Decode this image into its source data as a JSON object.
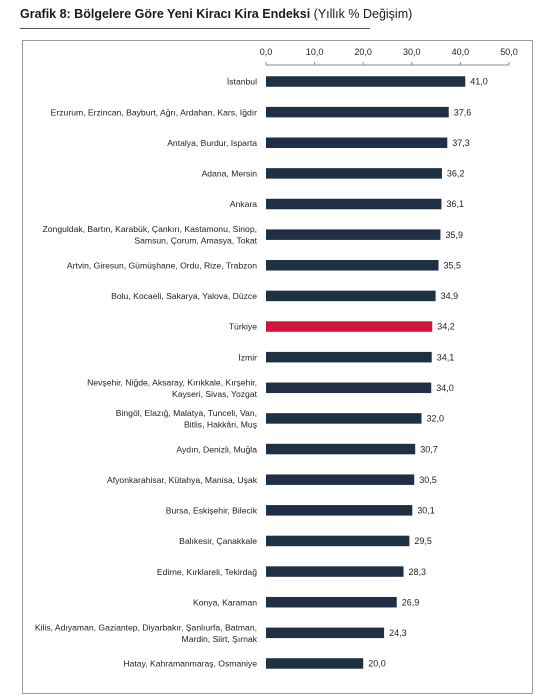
{
  "chart_data": {
    "type": "bar",
    "orientation": "horizontal",
    "title": "Grafik 8: Bölgelere Göre Yeni Kiracı Kira Endeksi",
    "subtitle": "(Yıllık % Değişim)",
    "xlim": [
      0,
      50
    ],
    "ticks": [
      "0,0",
      "10,0",
      "20,0",
      "30,0",
      "40,0",
      "50,0"
    ],
    "tick_values": [
      0,
      10,
      20,
      30,
      40,
      50
    ],
    "colors": {
      "default": "#1f3044",
      "highlight": "#d0163d"
    },
    "highlight_category": "Türkiye",
    "categories": [
      [
        "İstanbul"
      ],
      [
        "Erzurum, Erzincan, Bayburt, Ağrı, Ardahan, Kars, Iğdır"
      ],
      [
        "Antalya, Burdur, Isparta"
      ],
      [
        "Adana, Mersin"
      ],
      [
        "Ankara"
      ],
      [
        "Zonguldak, Bartın, Karabük, Çankırı, Kastamonu, Sinop,",
        "Samsun, Çorum, Amasya, Tokat"
      ],
      [
        "Artvin, Giresun, Gümüşhane, Ordu, Rize, Trabzon"
      ],
      [
        "Bolu, Kocaeli, Sakarya, Yalova, Düzce"
      ],
      [
        "Türkiye"
      ],
      [
        "İzmir"
      ],
      [
        "Nevşehir, Niğde, Aksaray, Kırıkkale, Kırşehir,",
        "Kayseri, Sivas, Yozgat"
      ],
      [
        "Bingöl, Elazığ, Malatya, Tunceli, Van,",
        "Bitlis, Hakkâri, Muş"
      ],
      [
        "Aydın, Denizli, Muğla"
      ],
      [
        "Afyonkarahisar, Kütahya, Manisa, Uşak"
      ],
      [
        "Bursa, Eskişehir, Bilecik"
      ],
      [
        "Balıkesir, Çanakkale"
      ],
      [
        "Edirne, Kırklareli, Tekirdağ"
      ],
      [
        "Konya, Karaman"
      ],
      [
        "Kilis, Adıyaman, Gaziantep, Diyarbakır, Şanlıurfa, Batman,",
        "Mardin, Siirt, Şırnak"
      ],
      [
        "Hatay, Kahramanmaraş, Osmaniye"
      ]
    ],
    "values": [
      41.0,
      37.6,
      37.3,
      36.2,
      36.1,
      35.9,
      35.5,
      34.9,
      34.2,
      34.1,
      34.0,
      32.0,
      30.7,
      30.5,
      30.1,
      29.5,
      28.3,
      26.9,
      24.3,
      20.0
    ],
    "value_labels": [
      "41,0",
      "37,6",
      "37,3",
      "36,2",
      "36,1",
      "35,9",
      "35,5",
      "34,9",
      "34,2",
      "34,1",
      "34,0",
      "32,0",
      "30,7",
      "30,5",
      "30,1",
      "29,5",
      "28,3",
      "26,9",
      "24,3",
      "20,0"
    ]
  }
}
